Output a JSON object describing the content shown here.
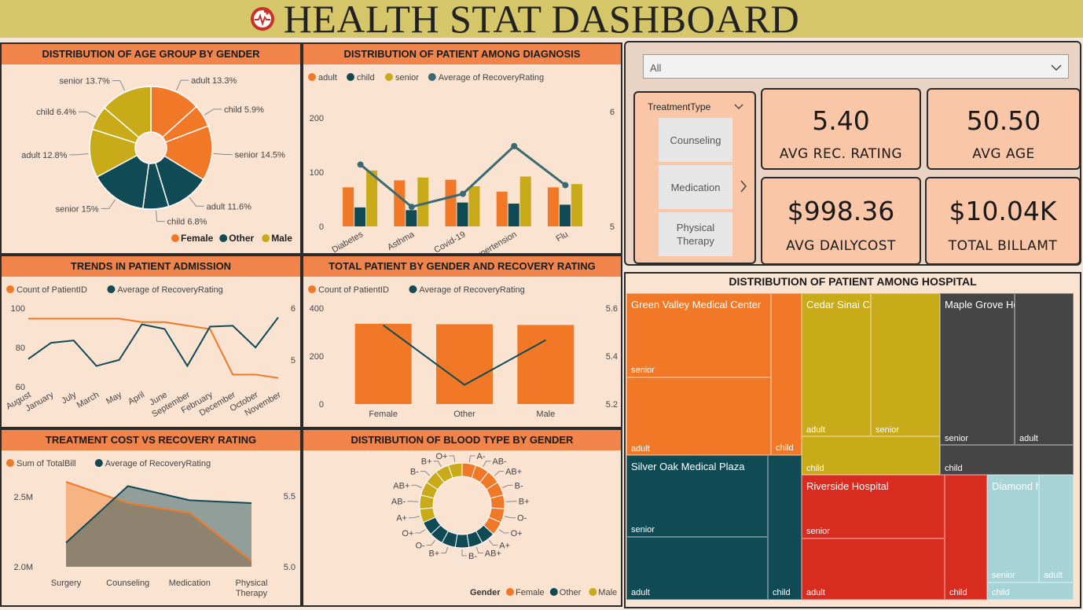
{
  "header": {
    "title": "HEALTH STAT DASHBOARD"
  },
  "colors": {
    "female": "#f07826",
    "other": "#0f4a55",
    "male": "#c9aa18",
    "recovery": "#3a6a72",
    "header": "#d6c66a",
    "panel_head": "#f0844a"
  },
  "age_gender": {
    "title": "DISTRIBUTION OF AGE GROUP BY GENDER",
    "legend": [
      "Female",
      "Other",
      "Male"
    ],
    "chart_data": {
      "type": "pie",
      "slices": [
        {
          "label": "adult 13.3%",
          "value": 13.3,
          "gender": "Female"
        },
        {
          "label": "child 5.9%",
          "value": 5.9,
          "gender": "Female"
        },
        {
          "label": "senior 14.5%",
          "value": 14.5,
          "gender": "Female"
        },
        {
          "label": "adult 11.6%",
          "value": 11.6,
          "gender": "Other"
        },
        {
          "label": "child 6.8%",
          "value": 6.8,
          "gender": "Other"
        },
        {
          "label": "senior 15%",
          "value": 15.0,
          "gender": "Other"
        },
        {
          "label": "adult 12.8%",
          "value": 12.8,
          "gender": "Male"
        },
        {
          "label": "child 6.4%",
          "value": 6.4,
          "gender": "Male"
        },
        {
          "label": "senior 13.7%",
          "value": 13.7,
          "gender": "Male"
        }
      ]
    }
  },
  "diagnosis": {
    "title": "DISTRIBUTION OF PATIENT AMONG DIAGNOSIS",
    "legend": [
      "adult",
      "child",
      "senior",
      "Average of RecoveryRating"
    ],
    "y_ticks": [
      "200",
      "100",
      "0"
    ],
    "y2_ticks": [
      "6",
      "5"
    ],
    "chart_data": {
      "type": "bar",
      "categories": [
        "Diabetes",
        "Asthma",
        "Covid-19",
        "Hypertension",
        "Flu"
      ],
      "series": [
        {
          "name": "adult",
          "values": [
            72,
            85,
            86,
            64,
            72
          ]
        },
        {
          "name": "child",
          "values": [
            35,
            30,
            44,
            42,
            40
          ]
        },
        {
          "name": "senior",
          "values": [
            103,
            90,
            74,
            92,
            78
          ]
        }
      ],
      "line": {
        "name": "Average of RecoveryRating",
        "values": [
          5.57,
          5.18,
          5.3,
          5.74,
          5.38
        ]
      },
      "ylim": [
        0,
        200
      ],
      "y2lim": [
        5,
        6
      ]
    }
  },
  "admission": {
    "title": "TRENDS IN PATIENT ADMISSION",
    "legend": [
      "Count of PatientID",
      "Average of RecoveryRating"
    ],
    "y_ticks": [
      "100",
      "80",
      "60"
    ],
    "y2_ticks": [
      "6",
      "5"
    ],
    "chart_data": {
      "type": "line",
      "categories": [
        "August",
        "January",
        "July",
        "March",
        "May",
        "April",
        "June",
        "September",
        "February",
        "December",
        "October",
        "November"
      ],
      "series": [
        {
          "name": "Count of PatientID",
          "values": [
            94,
            94,
            94,
            94,
            94,
            92,
            92,
            90,
            88,
            62,
            62,
            60
          ]
        },
        {
          "name": "Average of RecoveryRating",
          "values": [
            5.1,
            5.45,
            5.5,
            4.95,
            5.08,
            5.85,
            5.75,
            4.95,
            5.8,
            5.82,
            5.35,
            6.0
          ]
        }
      ],
      "ylim": [
        55,
        100
      ],
      "y2lim": [
        4.5,
        6.2
      ]
    }
  },
  "gender_recovery": {
    "title": "TOTAL PATIENT BY GENDER AND RECOVERY RATING",
    "legend": [
      "Count of PatientID",
      "Average of RecoveryRating"
    ],
    "y_ticks": [
      "400",
      "200",
      "0"
    ],
    "y2_ticks": [
      "5.6",
      "5.4",
      "5.2"
    ],
    "chart_data": {
      "type": "bar",
      "categories": [
        "Female",
        "Other",
        "Male"
      ],
      "series": [
        {
          "name": "Count of PatientID",
          "values": [
            335,
            333,
            330
          ]
        }
      ],
      "line": {
        "name": "Average of RecoveryRating",
        "values": [
          5.52,
          5.24,
          5.45
        ]
      },
      "ylim": [
        0,
        400
      ],
      "y2lim": [
        5.15,
        5.6
      ]
    }
  },
  "cost": {
    "title": "TREATMENT COST VS  RECOVERY RATING",
    "legend": [
      "Sum of TotalBill",
      "Average of RecoveryRating"
    ],
    "y_ticks": [
      "2.5M",
      "2.0M"
    ],
    "y2_ticks": [
      "5.5",
      "5.0"
    ],
    "chart_data": {
      "type": "area",
      "categories": [
        "Surgery",
        "Counseling",
        "Medication",
        "Physical Therapy"
      ],
      "series": [
        {
          "name": "Sum of TotalBill",
          "values": [
            2.6,
            2.45,
            2.38,
            2.04
          ]
        },
        {
          "name": "Average of RecoveryRating",
          "values": [
            5.17,
            5.57,
            5.47,
            5.45
          ]
        }
      ],
      "ylim": [
        2.0,
        2.6
      ],
      "y2lim": [
        5.0,
        5.6
      ]
    }
  },
  "blood": {
    "title": "DISTRIBUTION OF BLOOD TYPE BY GENDER",
    "legend_title": "Gender",
    "legend": [
      "Female",
      "Other",
      "Male"
    ],
    "chart_data": {
      "type": "pie",
      "segments": [
        {
          "label": "A-",
          "gender": "Female"
        },
        {
          "label": "AB-",
          "gender": "Female"
        },
        {
          "label": "AB+",
          "gender": "Female"
        },
        {
          "label": "B-",
          "gender": "Female"
        },
        {
          "label": "B+",
          "gender": "Female"
        },
        {
          "label": "O-",
          "gender": "Female"
        },
        {
          "label": "O+",
          "gender": "Female"
        },
        {
          "label": "A+",
          "gender": "Other"
        },
        {
          "label": "AB+",
          "gender": "Other"
        },
        {
          "label": "B-",
          "gender": "Other"
        },
        {
          "label": "B+",
          "gender": "Other"
        },
        {
          "label": "O-",
          "gender": "Other"
        },
        {
          "label": "O+",
          "gender": "Other"
        },
        {
          "label": "A+",
          "gender": "Male"
        },
        {
          "label": "AB-",
          "gender": "Male"
        },
        {
          "label": "AB+",
          "gender": "Male"
        },
        {
          "label": "B-",
          "gender": "Male"
        },
        {
          "label": "B+",
          "gender": "Male"
        },
        {
          "label": "O+",
          "gender": "Male"
        }
      ]
    }
  },
  "filter": {
    "selected": "All"
  },
  "slicer": {
    "title": "TreatmentType",
    "options": [
      "Counseling",
      "Medication",
      "Physical Therapy"
    ]
  },
  "kpis": [
    {
      "value": "5.40",
      "label": "AVG REC. RATING"
    },
    {
      "value": "50.50",
      "label": "AVG AGE"
    },
    {
      "value": "$998.36",
      "label": "AVG DAILYCOST"
    },
    {
      "value": "$10.04K",
      "label": "TOTAL BILLAMT"
    }
  ],
  "hospital": {
    "title": "DISTRIBUTION OF PATIENT AMONG HOSPITAL",
    "names": [
      "Green Valley Medical Center",
      "Cedar Sinai Clinic",
      "Maple Grove Health Facility",
      "Silver Oak Medical Plaza",
      "Riverside Hospital",
      "Diamond hospi..."
    ],
    "labels": {
      "senior": "senior",
      "adult": "adult",
      "child": "child"
    }
  }
}
